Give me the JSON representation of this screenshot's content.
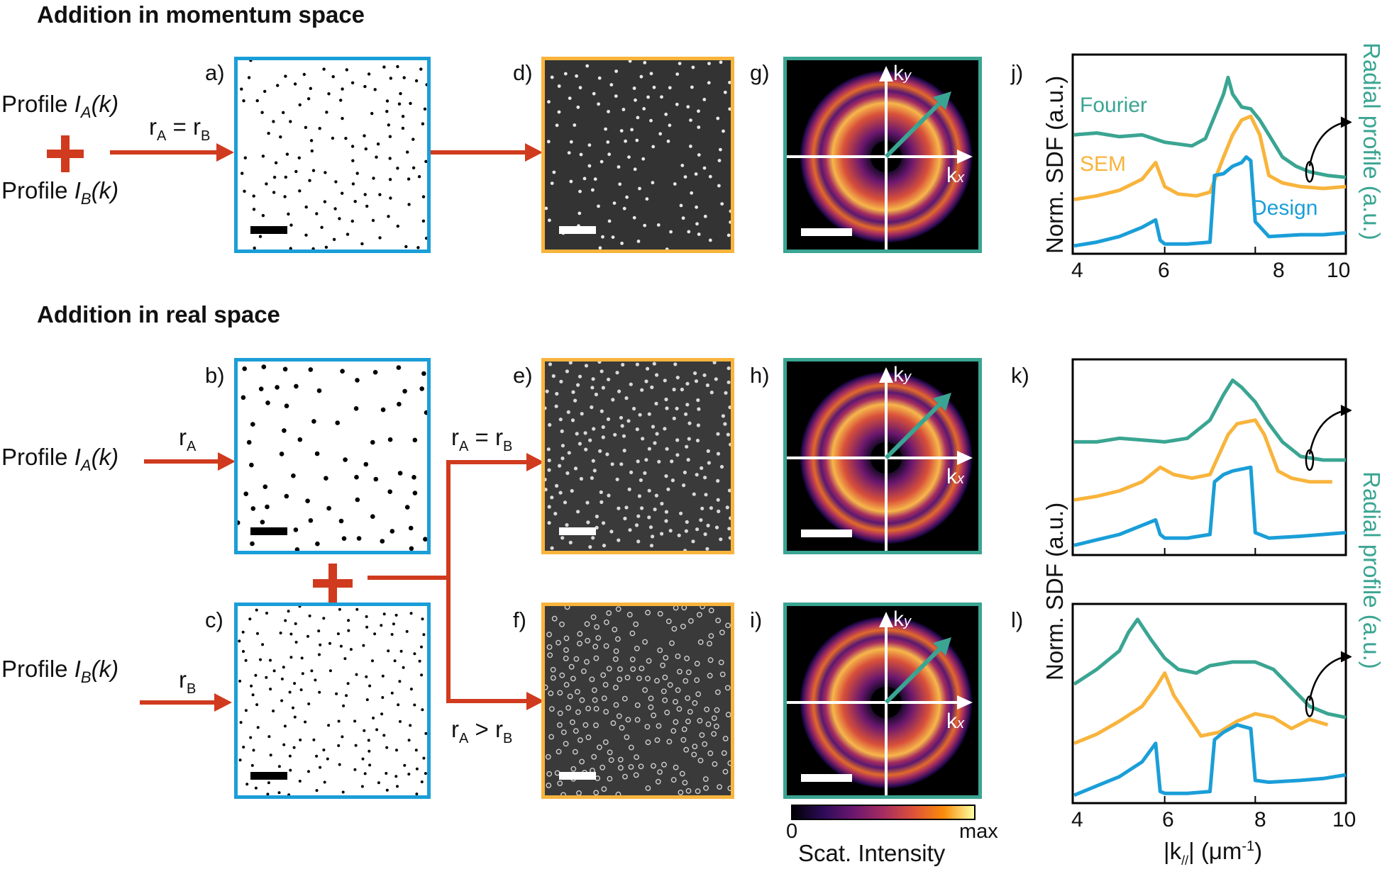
{
  "sections": {
    "momentum_title": "Addition in momentum space",
    "real_title": "Addition in real space"
  },
  "labels": {
    "profile_a": "Profile ",
    "profile_b": "Profile ",
    "ia": "I",
    "ia_sub": "A",
    "ib": "I",
    "ib_sub": "B",
    "k_arg": "(k)",
    "r": "r",
    "sub_a": "A",
    "sub_b": "B",
    "eq": " = ",
    "gt": " > "
  },
  "panel_letters": {
    "a": "a)",
    "b": "b)",
    "c": "c)",
    "d": "d)",
    "e": "e)",
    "f": "f)",
    "g": "g)",
    "h": "h)",
    "i": "i)",
    "j": "j)",
    "k": "k)",
    "l": "l)"
  },
  "axes": {
    "kx": "k",
    "kx_sub": "x",
    "ky": "k",
    "ky_sub": "y"
  },
  "colorbar": {
    "min": "0",
    "max": "max",
    "title": "Scat. Intensity"
  },
  "colors": {
    "design": "#1a9ed8",
    "sem": "#f8b43c",
    "fourier": "#3aa592",
    "arrow": "#d03a1e"
  },
  "chart_data": [
    {
      "id": "j",
      "type": "line",
      "xlim": [
        4,
        10
      ],
      "xticks": [
        "4",
        "6",
        "8",
        "10"
      ],
      "ylabel": "Norm. SDF (a.u.)",
      "ylabel2": "Radial profile (a.u.)",
      "series": [
        {
          "name": "Fourier",
          "x": [
            4,
            4.5,
            5,
            5.5,
            6,
            6.3,
            6.6,
            6.9,
            7.1,
            7.3,
            7.4,
            7.5,
            7.7,
            7.9,
            8.1,
            8.3,
            8.6,
            8.9,
            9.2,
            9.6,
            10
          ],
          "y": [
            0.62,
            0.63,
            0.61,
            0.62,
            0.58,
            0.57,
            0.56,
            0.6,
            0.72,
            0.84,
            0.93,
            0.84,
            0.77,
            0.76,
            0.7,
            0.62,
            0.5,
            0.45,
            0.42,
            0.4,
            0.39
          ]
        },
        {
          "name": "SEM",
          "x": [
            4,
            4.5,
            5,
            5.5,
            5.8,
            6,
            6.3,
            6.7,
            7,
            7.3,
            7.5,
            7.7,
            7.9,
            8.1,
            8.3,
            8.6,
            9,
            9.5,
            10
          ],
          "y": [
            0.27,
            0.29,
            0.32,
            0.38,
            0.47,
            0.34,
            0.3,
            0.29,
            0.31,
            0.5,
            0.62,
            0.7,
            0.72,
            0.62,
            0.4,
            0.36,
            0.34,
            0.33,
            0.34
          ]
        },
        {
          "name": "Design",
          "x": [
            4,
            4.5,
            5,
            5.5,
            5.8,
            5.9,
            6,
            6.5,
            7,
            7.1,
            7.3,
            7.5,
            7.7,
            7.8,
            7.9,
            8,
            8.3,
            9,
            9.5,
            10
          ],
          "y": [
            0.02,
            0.04,
            0.07,
            0.12,
            0.16,
            0.05,
            0.03,
            0.03,
            0.04,
            0.4,
            0.41,
            0.45,
            0.47,
            0.5,
            0.48,
            0.15,
            0.07,
            0.08,
            0.08,
            0.09
          ]
        }
      ],
      "annotations": [
        "Fourier",
        "SEM",
        "Design"
      ]
    },
    {
      "id": "k",
      "type": "line",
      "xlim": [
        4,
        10
      ],
      "xticks": [],
      "series": [
        {
          "name": "Fourier",
          "x": [
            4,
            4.5,
            5,
            5.5,
            6,
            6.5,
            7,
            7.3,
            7.5,
            7.7,
            8,
            8.3,
            8.6,
            9,
            9.5,
            10
          ],
          "y": [
            0.6,
            0.6,
            0.62,
            0.61,
            0.6,
            0.62,
            0.72,
            0.86,
            0.94,
            0.9,
            0.82,
            0.7,
            0.6,
            0.52,
            0.5,
            0.5
          ]
        },
        {
          "name": "SEM",
          "x": [
            4,
            4.5,
            5,
            5.5,
            5.9,
            6.2,
            6.6,
            7,
            7.4,
            7.6,
            7.8,
            8,
            8.2,
            8.5,
            8.8,
            9.2,
            9.7
          ],
          "y": [
            0.28,
            0.3,
            0.33,
            0.38,
            0.46,
            0.42,
            0.4,
            0.42,
            0.64,
            0.7,
            0.71,
            0.72,
            0.64,
            0.44,
            0.4,
            0.38,
            0.38
          ]
        },
        {
          "name": "Design",
          "x": [
            4,
            4.5,
            5,
            5.5,
            5.8,
            5.9,
            6,
            6.5,
            7,
            7.1,
            7.3,
            7.5,
            7.7,
            7.9,
            8,
            8.3,
            9,
            9.5,
            10
          ],
          "y": [
            0.03,
            0.06,
            0.09,
            0.14,
            0.17,
            0.09,
            0.07,
            0.07,
            0.09,
            0.38,
            0.42,
            0.44,
            0.45,
            0.46,
            0.1,
            0.07,
            0.08,
            0.09,
            0.1
          ]
        }
      ]
    },
    {
      "id": "l",
      "type": "line",
      "xlim": [
        4,
        10
      ],
      "xticks": [
        "4",
        "6",
        "8",
        "10"
      ],
      "xlabel": "|k",
      "xlabel_sub": "//",
      "xlabel_rest": "| (μm",
      "xlabel_sup": "-1",
      "xlabel_end": ")",
      "ylabel": "Norm. SDF (a.u.)",
      "ylabel2": "Radial profile (a.u.)",
      "series": [
        {
          "name": "Fourier",
          "x": [
            4,
            4.5,
            5,
            5.2,
            5.4,
            5.7,
            6,
            6.3,
            6.7,
            7,
            7.5,
            8,
            8.4,
            8.8,
            9.2,
            9.6,
            10
          ],
          "y": [
            0.62,
            0.7,
            0.8,
            0.9,
            0.97,
            0.86,
            0.76,
            0.7,
            0.68,
            0.72,
            0.74,
            0.74,
            0.7,
            0.6,
            0.5,
            0.46,
            0.44
          ]
        },
        {
          "name": "SEM",
          "x": [
            4,
            4.5,
            5,
            5.5,
            5.8,
            6,
            6.2,
            6.5,
            6.8,
            7.2,
            7.6,
            8,
            8.4,
            8.8,
            9.2,
            9.6
          ],
          "y": [
            0.3,
            0.35,
            0.42,
            0.5,
            0.6,
            0.68,
            0.56,
            0.45,
            0.34,
            0.36,
            0.42,
            0.46,
            0.44,
            0.38,
            0.43,
            0.4
          ]
        },
        {
          "name": "Design",
          "x": [
            4,
            4.5,
            5,
            5.5,
            5.8,
            5.9,
            6,
            6.5,
            7,
            7.1,
            7.3,
            7.6,
            7.9,
            8,
            8.3,
            9,
            9.5,
            10
          ],
          "y": [
            0.02,
            0.07,
            0.12,
            0.2,
            0.3,
            0.04,
            0.03,
            0.03,
            0.04,
            0.32,
            0.36,
            0.4,
            0.38,
            0.1,
            0.09,
            0.1,
            0.11,
            0.13
          ]
        }
      ]
    }
  ]
}
